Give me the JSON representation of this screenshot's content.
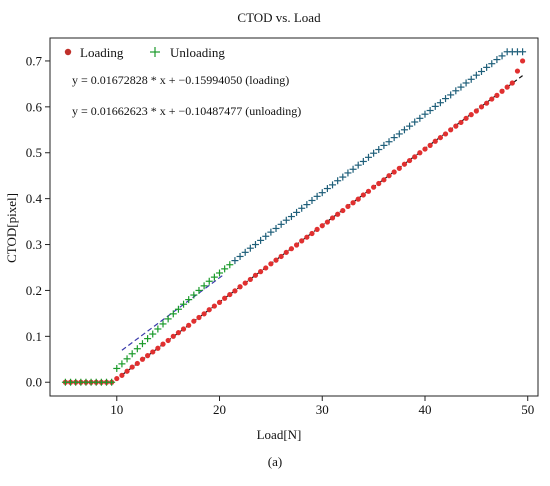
{
  "chart_data": {
    "type": "scatter",
    "title": "CTOD vs. Load",
    "xlabel": "Load[N]",
    "ylabel": "CTOD[pixel]",
    "xlim": [
      3.5,
      51.0
    ],
    "ylim": [
      -0.03,
      0.75
    ],
    "xticks": [
      10,
      20,
      30,
      40,
      50
    ],
    "yticks": [
      0.0,
      0.1,
      0.2,
      0.3,
      0.4,
      0.5,
      0.6,
      0.7
    ],
    "grid": false,
    "legend": "top-left",
    "series": [
      {
        "name": "Loading",
        "marker": "dot",
        "color": "#e03030",
        "x": [
          5.0,
          5.5,
          6.0,
          6.5,
          7.0,
          7.5,
          8.0,
          8.5,
          9.0,
          9.5,
          10.0,
          10.5,
          11.0,
          11.5,
          12.0,
          12.5,
          13.0,
          13.5,
          14.0,
          14.5,
          15.0,
          15.5,
          16.0,
          16.5,
          17.0,
          17.5,
          18.0,
          18.5,
          19.0,
          19.5,
          20.0,
          20.5,
          21.0,
          21.5,
          22.0,
          22.5,
          23.0,
          23.5,
          24.0,
          24.5,
          25.0,
          25.5,
          26.0,
          26.5,
          27.0,
          27.5,
          28.0,
          28.5,
          29.0,
          29.5,
          30.0,
          30.5,
          31.0,
          31.5,
          32.0,
          32.5,
          33.0,
          33.5,
          34.0,
          34.5,
          35.0,
          35.5,
          36.0,
          36.5,
          37.0,
          37.5,
          38.0,
          38.5,
          39.0,
          39.5,
          40.0,
          40.5,
          41.0,
          41.5,
          42.0,
          42.5,
          43.0,
          43.5,
          44.0,
          44.5,
          45.0,
          45.5,
          46.0,
          46.5,
          47.0,
          47.5,
          48.0,
          48.5,
          49.0,
          49.5
        ],
        "y": [
          0.0,
          0.0,
          0.0,
          0.0,
          0.0,
          0.0,
          0.0,
          0.0,
          0.0,
          0.0,
          0.008,
          0.015,
          0.024,
          0.033,
          0.041,
          0.05,
          0.058,
          0.066,
          0.074,
          0.083,
          0.091,
          0.1,
          0.108,
          0.116,
          0.124,
          0.133,
          0.141,
          0.149,
          0.158,
          0.166,
          0.174,
          0.183,
          0.191,
          0.199,
          0.208,
          0.216,
          0.224,
          0.233,
          0.241,
          0.249,
          0.258,
          0.266,
          0.274,
          0.283,
          0.291,
          0.299,
          0.308,
          0.316,
          0.324,
          0.333,
          0.341,
          0.349,
          0.358,
          0.366,
          0.374,
          0.383,
          0.391,
          0.399,
          0.408,
          0.416,
          0.425,
          0.433,
          0.441,
          0.45,
          0.458,
          0.466,
          0.475,
          0.483,
          0.491,
          0.5,
          0.508,
          0.516,
          0.525,
          0.533,
          0.541,
          0.55,
          0.558,
          0.566,
          0.575,
          0.583,
          0.591,
          0.6,
          0.608,
          0.617,
          0.625,
          0.634,
          0.643,
          0.652,
          0.678,
          0.7
        ]
      },
      {
        "name": "Unloading",
        "marker": "plus",
        "color": "#1a9a2a",
        "x": [
          5.0,
          5.5,
          6.0,
          6.5,
          7.0,
          7.5,
          8.0,
          8.5,
          9.0,
          9.5,
          10.0,
          10.5,
          11.0,
          11.5,
          12.0,
          12.5,
          13.0,
          13.5,
          14.0,
          14.5,
          15.0,
          15.5,
          16.0,
          16.5,
          17.0,
          17.5,
          18.0,
          18.5,
          19.0,
          19.5,
          20.0,
          20.5,
          21.0,
          21.5,
          22.0,
          22.5,
          23.0,
          23.5,
          24.0,
          24.5,
          25.0,
          25.5,
          26.0,
          26.5,
          27.0,
          27.5,
          28.0,
          28.5,
          29.0,
          29.5,
          30.0,
          30.5,
          31.0,
          31.5,
          32.0,
          32.5,
          33.0,
          33.5,
          34.0,
          34.5,
          35.0,
          35.5,
          36.0,
          36.5,
          37.0,
          37.5,
          38.0,
          38.5,
          39.0,
          39.5,
          40.0,
          40.5,
          41.0,
          41.5,
          42.0,
          42.5,
          43.0,
          43.5,
          44.0,
          44.5,
          45.0,
          45.5,
          46.0,
          46.5,
          47.0,
          47.5,
          48.0,
          48.5,
          49.0,
          49.5
        ],
        "y": [
          0.0,
          0.0,
          0.0,
          0.0,
          0.0,
          0.0,
          0.0,
          0.0,
          0.0,
          0.0,
          0.03,
          0.04,
          0.051,
          0.062,
          0.073,
          0.084,
          0.095,
          0.105,
          0.116,
          0.127,
          0.138,
          0.149,
          0.159,
          0.17,
          0.18,
          0.19,
          0.2,
          0.21,
          0.22,
          0.229,
          0.238,
          0.247,
          0.256,
          0.265,
          0.274,
          0.283,
          0.292,
          0.3,
          0.309,
          0.318,
          0.327,
          0.335,
          0.344,
          0.353,
          0.361,
          0.37,
          0.379,
          0.387,
          0.396,
          0.405,
          0.413,
          0.422,
          0.43,
          0.439,
          0.447,
          0.456,
          0.464,
          0.473,
          0.481,
          0.49,
          0.499,
          0.507,
          0.516,
          0.524,
          0.533,
          0.541,
          0.55,
          0.558,
          0.567,
          0.575,
          0.584,
          0.592,
          0.601,
          0.609,
          0.618,
          0.626,
          0.635,
          0.643,
          0.652,
          0.66,
          0.669,
          0.677,
          0.686,
          0.694,
          0.703,
          0.711,
          0.72,
          0.72,
          0.72,
          0.72
        ]
      }
    ],
    "fit_lines": [
      {
        "slope": 0.01672828,
        "intercept": -0.1599405,
        "x_range": [
          10.5,
          49.5
        ],
        "color": "#111111",
        "style": "dashed"
      },
      {
        "slope": 0.01662623,
        "intercept": -0.10487477,
        "x_range": [
          10.5,
          20.5
        ],
        "color": "#3a3aaa",
        "style": "dashed"
      }
    ],
    "annotations": [
      "y = 0.01672828 * x  + −0.15994050 (loading)",
      "y = 0.01662623 * x  + −0.10487477  (unloading)"
    ]
  },
  "caption": "(a)"
}
